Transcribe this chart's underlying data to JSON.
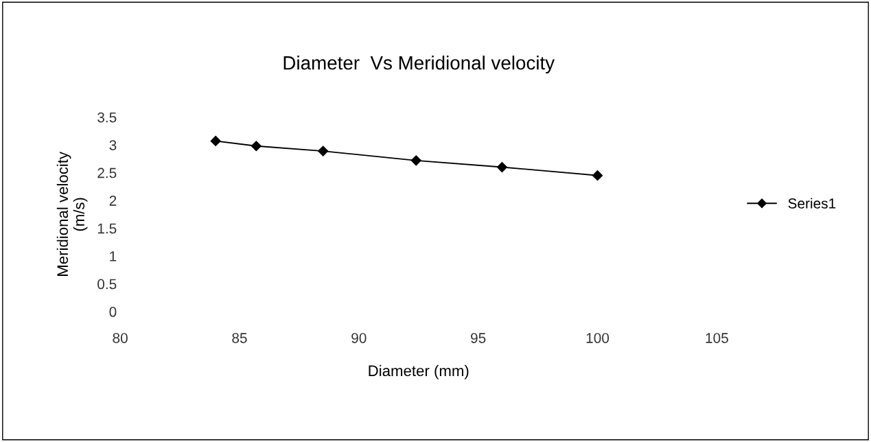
{
  "chart_data": {
    "type": "line",
    "title": "Diameter  Vs Meridional velocity",
    "xlabel": "Diameter (mm)",
    "ylabel": "Meridional velocity\n(m/s)",
    "x": [
      84,
      85.7,
      88.5,
      92.4,
      96,
      100
    ],
    "series": [
      {
        "name": "Series1",
        "color": "#000000",
        "values": [
          3.07,
          2.98,
          2.89,
          2.72,
          2.6,
          2.45
        ]
      }
    ],
    "xlim": [
      80,
      105
    ],
    "xticks": [
      80,
      85,
      90,
      95,
      100,
      105
    ],
    "ylim": [
      0,
      3.5
    ],
    "yticks": [
      0,
      0.5,
      1,
      1.5,
      2,
      2.5,
      3,
      3.5
    ],
    "marker": "diamond",
    "line_style": "solid",
    "legend": "right",
    "grid": false
  }
}
